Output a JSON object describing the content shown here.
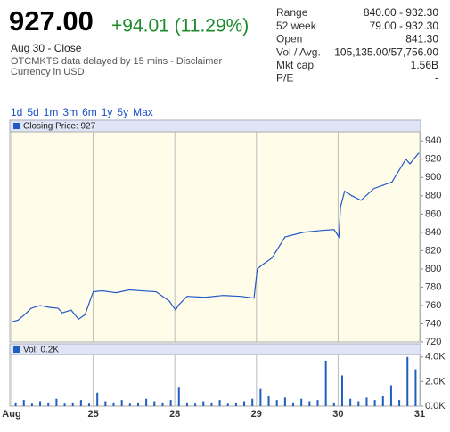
{
  "header": {
    "price": "927.00",
    "change": "+94.01 (11.29%)",
    "date": "Aug 30 - Close",
    "disclaimer": "OTCMKTS data delayed by 15 mins - Disclaimer",
    "currency": "Currency in USD"
  },
  "stats": [
    {
      "label": "Range",
      "value": "840.00 - 932.30"
    },
    {
      "label": "52 week",
      "value": "79.00 - 932.30"
    },
    {
      "label": "Open",
      "value": "841.30"
    },
    {
      "label": "Vol / Avg.",
      "value": "105,135.00/57,756.00"
    },
    {
      "label": "Mkt cap",
      "value": "1.56B"
    },
    {
      "label": "P/E",
      "value": "-"
    }
  ],
  "ranges": [
    "1d",
    "5d",
    "1m",
    "3m",
    "6m",
    "1y",
    "5y",
    "Max"
  ],
  "chart_data": [
    {
      "type": "line",
      "series": [
        {
          "name": "Closing Price: 927",
          "color": "#2458c8",
          "x": [
            0,
            0.08,
            0.16,
            0.24,
            0.35,
            0.46,
            0.57,
            0.62,
            0.73,
            0.82,
            0.9,
            1.0,
            1.11,
            1.28,
            1.44,
            1.6,
            1.77,
            1.93,
            2.01,
            2.04,
            2.15,
            2.37,
            2.59,
            2.81,
            2.97,
            3.01,
            3.08,
            3.19,
            3.35,
            3.57,
            3.79,
            3.95,
            4.01,
            4.03,
            4.08,
            4.17,
            4.28,
            4.44,
            4.66,
            4.83,
            4.88,
            4.99
          ],
          "values": [
            742,
            744,
            750,
            757,
            760,
            758,
            757,
            752,
            755,
            745,
            750,
            775,
            776,
            774,
            777,
            776,
            775,
            765,
            755,
            760,
            770,
            769,
            771,
            770,
            768,
            800,
            805,
            812,
            835,
            840,
            842,
            843,
            835,
            868,
            885,
            880,
            875,
            888,
            895,
            920,
            915,
            927
          ]
        }
      ],
      "xlim": [
        0,
        5
      ],
      "xticks": [
        0,
        1,
        2,
        3,
        4,
        5
      ],
      "ylim": [
        720,
        950
      ],
      "yticks": [
        720,
        740,
        760,
        780,
        800,
        820,
        840,
        860,
        880,
        900,
        920,
        940
      ],
      "grid": true
    },
    {
      "type": "bar",
      "series": [
        {
          "name": "Vol: 0.2K",
          "color": "#1f5fbf",
          "x": [
            0.05,
            0.15,
            0.25,
            0.35,
            0.45,
            0.55,
            0.65,
            0.75,
            0.85,
            0.95,
            1.05,
            1.15,
            1.25,
            1.35,
            1.45,
            1.55,
            1.65,
            1.75,
            1.85,
            1.95,
            2.05,
            2.15,
            2.25,
            2.35,
            2.45,
            2.55,
            2.65,
            2.75,
            2.85,
            2.95,
            3.05,
            3.15,
            3.25,
            3.35,
            3.45,
            3.55,
            3.65,
            3.75,
            3.85,
            3.95,
            4.05,
            4.15,
            4.25,
            4.35,
            4.45,
            4.55,
            4.65,
            4.75,
            4.85,
            4.95
          ],
          "values": [
            300,
            500,
            200,
            400,
            300,
            600,
            200,
            300,
            500,
            200,
            1100,
            400,
            300,
            500,
            200,
            300,
            600,
            400,
            300,
            500,
            1500,
            300,
            200,
            400,
            300,
            500,
            200,
            300,
            400,
            600,
            1400,
            800,
            500,
            700,
            300,
            600,
            400,
            500,
            3700,
            300,
            2500,
            600,
            400,
            700,
            500,
            800,
            1700,
            500,
            4000,
            3000
          ]
        }
      ],
      "xlim": [
        0,
        5
      ],
      "xticks": [
        {
          "value": 0,
          "label": "Aug"
        },
        {
          "value": 1,
          "label": "25"
        },
        {
          "value": 2,
          "label": "28"
        },
        {
          "value": 3,
          "label": "29"
        },
        {
          "value": 4,
          "label": "30"
        },
        {
          "value": 5,
          "label": "31"
        }
      ],
      "ylim": [
        0,
        4200
      ],
      "yticks": [
        {
          "value": 0,
          "label": "0.0K"
        },
        {
          "value": 2000,
          "label": "2.0K"
        },
        {
          "value": 4000,
          "label": "4.0K"
        }
      ],
      "grid": true
    }
  ]
}
